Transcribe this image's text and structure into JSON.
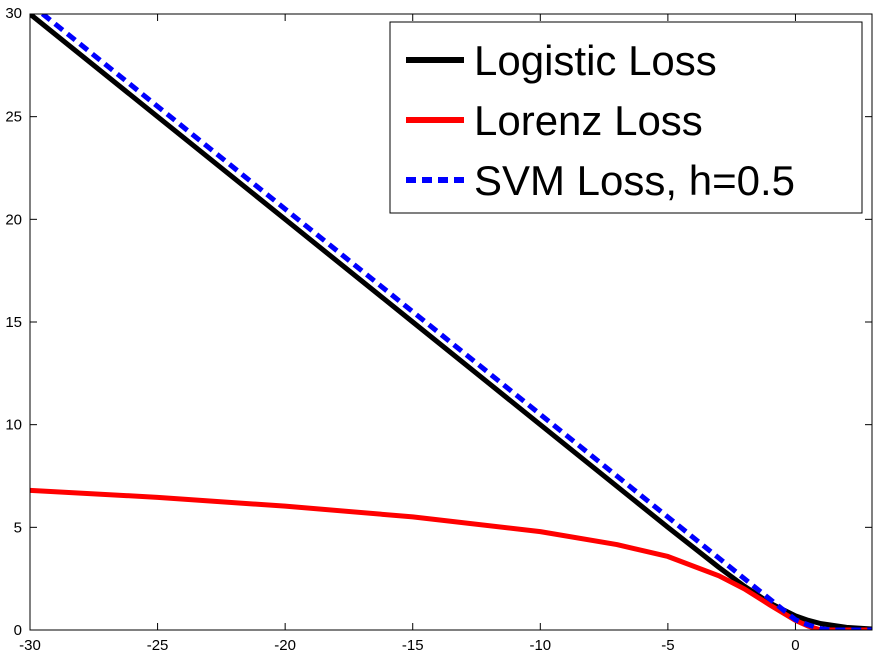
{
  "chart_data": {
    "type": "line",
    "title": "",
    "xlabel": "",
    "ylabel": "",
    "xlim": [
      -30,
      3
    ],
    "ylim": [
      0,
      30
    ],
    "xticks": [
      -30,
      -25,
      -20,
      -15,
      -10,
      -5,
      0
    ],
    "yticks": [
      0,
      5,
      10,
      15,
      20,
      25,
      30
    ],
    "xtick_labels": [
      "-30",
      "-25",
      "-20",
      "-15",
      "-10",
      "-5",
      "0"
    ],
    "ytick_labels": [
      "0",
      "5",
      "10",
      "15",
      "20",
      "25",
      "30"
    ],
    "grid": false,
    "legend_position": "top-right",
    "series": [
      {
        "name": "Logistic Loss",
        "color": "#000000",
        "style": "solid",
        "x": [
          -30,
          -25,
          -20,
          -15,
          -10,
          -5,
          -3,
          -2,
          -1,
          0,
          0.5,
          1,
          2,
          3
        ],
        "y": [
          30,
          25,
          20,
          15,
          10,
          5,
          3.05,
          2.13,
          1.31,
          0.69,
          0.47,
          0.31,
          0.13,
          0.05
        ]
      },
      {
        "name": "Lorenz Loss",
        "color": "#ff0000",
        "style": "solid",
        "x": [
          -30,
          -25,
          -20,
          -15,
          -10,
          -7,
          -5,
          -3,
          -2,
          -1,
          0,
          0.5,
          1,
          2,
          3
        ],
        "y": [
          6.8,
          6.46,
          6.03,
          5.51,
          4.79,
          4.16,
          3.58,
          2.64,
          2.0,
          1.22,
          0.47,
          0.19,
          0,
          0,
          0
        ]
      },
      {
        "name": "SVM Loss, h=0.5",
        "color": "#0000ff",
        "style": "dashed",
        "x": [
          -30,
          -25,
          -20,
          -15,
          -10,
          -5,
          -2,
          -1,
          0,
          0.5,
          1,
          1.5,
          2,
          3
        ],
        "y": [
          30.5,
          25.5,
          20.5,
          15.5,
          10.5,
          5.5,
          2.5,
          1.5,
          0.5,
          0.25,
          0.06,
          0,
          0,
          0
        ]
      }
    ]
  }
}
